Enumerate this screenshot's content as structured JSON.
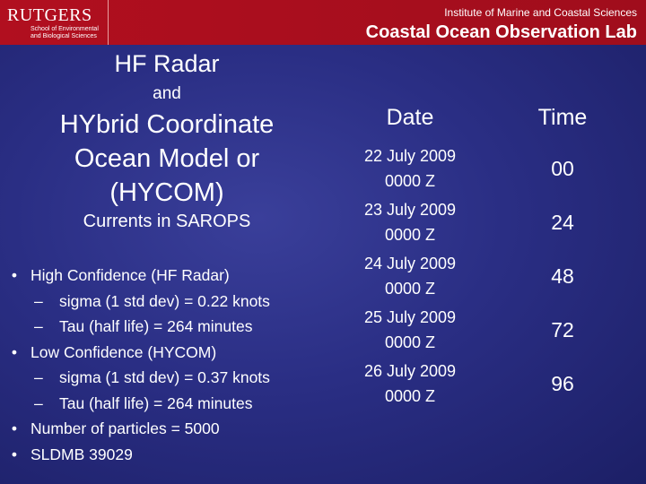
{
  "header": {
    "logo_main": "RUTGERS",
    "logo_sub_line1": "School of Environmental",
    "logo_sub_line2": "and Biological Sciences",
    "institute": "Institute of Marine and Coastal Sciences",
    "lab": "Coastal Ocean Observation Lab"
  },
  "left": {
    "title1": "HF Radar",
    "title2": "and",
    "title3_line1": "HYbrid Coordinate",
    "title3_line2": "Ocean Model or",
    "title3_line3": "(HYCOM)",
    "title4": "Currents in SAROPS",
    "bullets": [
      {
        "level": 1,
        "text": "High Confidence (HF Radar)"
      },
      {
        "level": 2,
        "text": "sigma (1 std dev) = 0.22 knots"
      },
      {
        "level": 2,
        "text": "Tau (half life)  = 264 minutes"
      },
      {
        "level": 1,
        "text": "Low Confidence (HYCOM)"
      },
      {
        "level": 2,
        "text": "sigma (1 std dev) = 0.37 knots"
      },
      {
        "level": 2,
        "text": "Tau (half life)  = 264 minutes"
      },
      {
        "level": 1,
        "text": "Number of particles = 5000"
      },
      {
        "level": 1,
        "text": "SLDMB 39029"
      }
    ]
  },
  "table": {
    "headers": [
      "Date",
      "Time"
    ],
    "rows": [
      {
        "date": "22 July 2009",
        "z": "0000 Z",
        "time": "00"
      },
      {
        "date": "23 July 2009",
        "z": "0000 Z",
        "time": "24"
      },
      {
        "date": "24 July 2009",
        "z": "0000 Z",
        "time": "48"
      },
      {
        "date": "25 July 2009",
        "z": "0000 Z",
        "time": "72"
      },
      {
        "date": "26 July 2009",
        "z": "0000 Z",
        "time": "96"
      }
    ]
  },
  "colors": {
    "header_red": "#b10f1f",
    "background_blue": "#2a2e84",
    "text": "#ffffff"
  }
}
